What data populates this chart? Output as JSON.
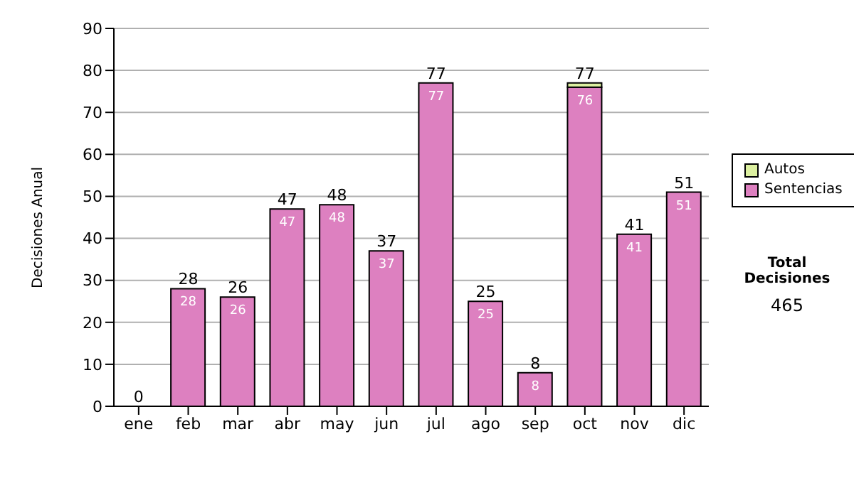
{
  "chart_data": {
    "type": "bar",
    "stacked": true,
    "ylabel": "Decisiones Anual",
    "categories": [
      "ene",
      "feb",
      "mar",
      "abr",
      "may",
      "jun",
      "jul",
      "ago",
      "sep",
      "oct",
      "nov",
      "dic"
    ],
    "series": [
      {
        "name": "Sentencias",
        "color": "#dd80c0",
        "values": [
          0,
          28,
          26,
          47,
          48,
          37,
          77,
          25,
          8,
          76,
          41,
          51
        ],
        "value_labels": [
          null,
          "28",
          "26",
          "47",
          "48",
          "37",
          "77",
          "25",
          "8",
          "76",
          "41",
          "51"
        ]
      },
      {
        "name": "Autos",
        "color": "#dcf0a0",
        "values": [
          0,
          0,
          0,
          0,
          0,
          0,
          0,
          0,
          0,
          1,
          0,
          0
        ]
      }
    ],
    "totals": [
      "0",
      "28",
      "26",
      "47",
      "48",
      "37",
      "77",
      "25",
      "8",
      "77",
      "41",
      "51"
    ],
    "ylim": [
      0,
      90
    ],
    "yticks": [
      0,
      10,
      20,
      30,
      40,
      50,
      60,
      70,
      80,
      90
    ],
    "grid": "y",
    "legend": "right",
    "annotations": [
      "Total Decisiones",
      "465"
    ]
  }
}
